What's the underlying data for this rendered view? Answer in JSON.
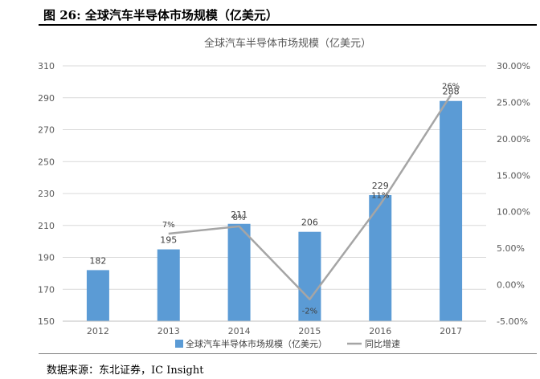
{
  "figure": {
    "label": "图  26:  全球汽车半导体市场规模（亿美元）",
    "source": "数据来源：东北证券，IC Insight"
  },
  "chart_data": {
    "type": "bar",
    "title": "全球汽车半导体市场规模（亿美元）",
    "categories": [
      "2012",
      "2013",
      "2014",
      "2015",
      "2016",
      "2017"
    ],
    "series": [
      {
        "name": "全球汽车半导体市场规模（亿美元）",
        "type": "bar",
        "axis": "left",
        "color": "#5b9bd5",
        "values": [
          182,
          195,
          211,
          206,
          229,
          288
        ],
        "labels": [
          "182",
          "195",
          "211",
          "206",
          "229",
          "288"
        ]
      },
      {
        "name": "同比增速",
        "type": "line",
        "axis": "right",
        "color": "#a5a5a5",
        "values": [
          null,
          7,
          8,
          -2,
          11,
          26
        ],
        "labels": [
          "",
          "7%",
          "8%",
          "-2%",
          "11%",
          "26%"
        ]
      }
    ],
    "y_left": {
      "range": [
        150,
        310
      ],
      "ticks": [
        150,
        170,
        190,
        210,
        230,
        250,
        270,
        290,
        310
      ],
      "tick_labels": [
        "150",
        "170",
        "190",
        "210",
        "230",
        "250",
        "270",
        "290",
        "310"
      ]
    },
    "y_right": {
      "range": [
        -5,
        30
      ],
      "ticks": [
        -5,
        0,
        5,
        10,
        15,
        20,
        25,
        30
      ],
      "tick_labels": [
        "-5.00%",
        "0.00%",
        "5.00%",
        "10.00%",
        "15.00%",
        "20.00%",
        "25.00%",
        "30.00%"
      ]
    },
    "grid": true,
    "legend": {
      "position": "bottom",
      "entries": [
        "全球汽车半导体市场规模（亿美元）",
        "同比增速"
      ]
    }
  }
}
